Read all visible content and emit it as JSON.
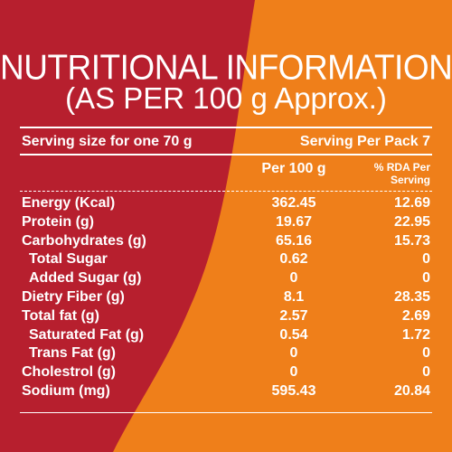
{
  "title": "NUTRITIONAL INFORMATION",
  "subtitle": "(AS PER 100 g Approx.)",
  "serving": {
    "size": "Serving size for one 70 g",
    "per_pack": "Serving Per Pack 7"
  },
  "table": {
    "columns": [
      "Per 100 g",
      "% RDA Per Serving"
    ],
    "rows": [
      [
        "Energy (Kcal)",
        "362.45",
        "12.69"
      ],
      [
        "Protein (g)",
        "19.67",
        "22.95"
      ],
      [
        "Carbohydrates (g)",
        "65.16",
        "15.73"
      ],
      [
        "Total Sugar",
        "0.62",
        "0"
      ],
      [
        "Added Sugar (g)",
        "0",
        "0"
      ],
      [
        "Dietry Fiber (g)",
        "8.1",
        "28.35"
      ],
      [
        "Total fat (g)",
        "2.57",
        "2.69"
      ],
      [
        "Saturated Fat (g)",
        "0.54",
        "1.72"
      ],
      [
        "Trans Fat (g)",
        "0",
        "0"
      ],
      [
        "Cholestrol (g)",
        "0",
        "0"
      ],
      [
        "Sodium (mg)",
        "595.43",
        "20.84"
      ]
    ]
  }
}
